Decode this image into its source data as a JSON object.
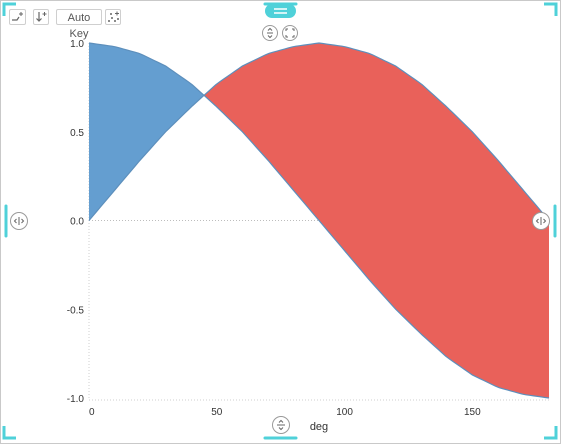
{
  "toolbar": {
    "auto_key_label": "Auto Key",
    "icons": [
      "trend-add-icon",
      "sort-add-icon",
      "scatter-add-icon"
    ]
  },
  "handles": {
    "color": "#4fd1d9",
    "icons": [
      "drag-handle-icon",
      "split-vertical-icon",
      "expand-icon",
      "split-horizontal-icon"
    ]
  },
  "chart_data": {
    "type": "area",
    "title": "",
    "xlabel": "deg",
    "ylabel": "",
    "xlim": [
      0,
      180
    ],
    "ylim": [
      -1.0,
      1.0
    ],
    "x_ticks": [
      0,
      50,
      100,
      150
    ],
    "y_ticks": [
      1.0,
      0.5,
      0.0,
      -0.5,
      -1.0
    ],
    "y_tick_labels": [
      "1.0",
      "0.5",
      "0.0",
      "-0.5",
      "-1.0"
    ],
    "x": [
      0,
      10,
      20,
      30,
      40,
      50,
      60,
      70,
      80,
      90,
      100,
      110,
      120,
      130,
      140,
      150,
      160,
      170,
      180
    ],
    "series": [
      {
        "values": [
          0.0,
          0.17,
          0.34,
          0.5,
          0.64,
          0.77,
          0.87,
          0.94,
          0.98,
          1.0,
          0.98,
          0.94,
          0.87,
          0.77,
          0.64,
          0.5,
          0.34,
          0.17,
          0.0
        ]
      },
      {
        "values": [
          1.0,
          0.98,
          0.94,
          0.87,
          0.77,
          0.64,
          0.5,
          0.34,
          0.17,
          0.0,
          -0.17,
          -0.34,
          -0.5,
          -0.64,
          -0.77,
          -0.87,
          -0.94,
          -0.98,
          -1.0
        ]
      }
    ],
    "fill_colors": {
      "above": "#649ed0",
      "below": "#e9615a"
    },
    "line_color": "#5d8fbc",
    "grid": false,
    "zero_line": "dotted"
  }
}
